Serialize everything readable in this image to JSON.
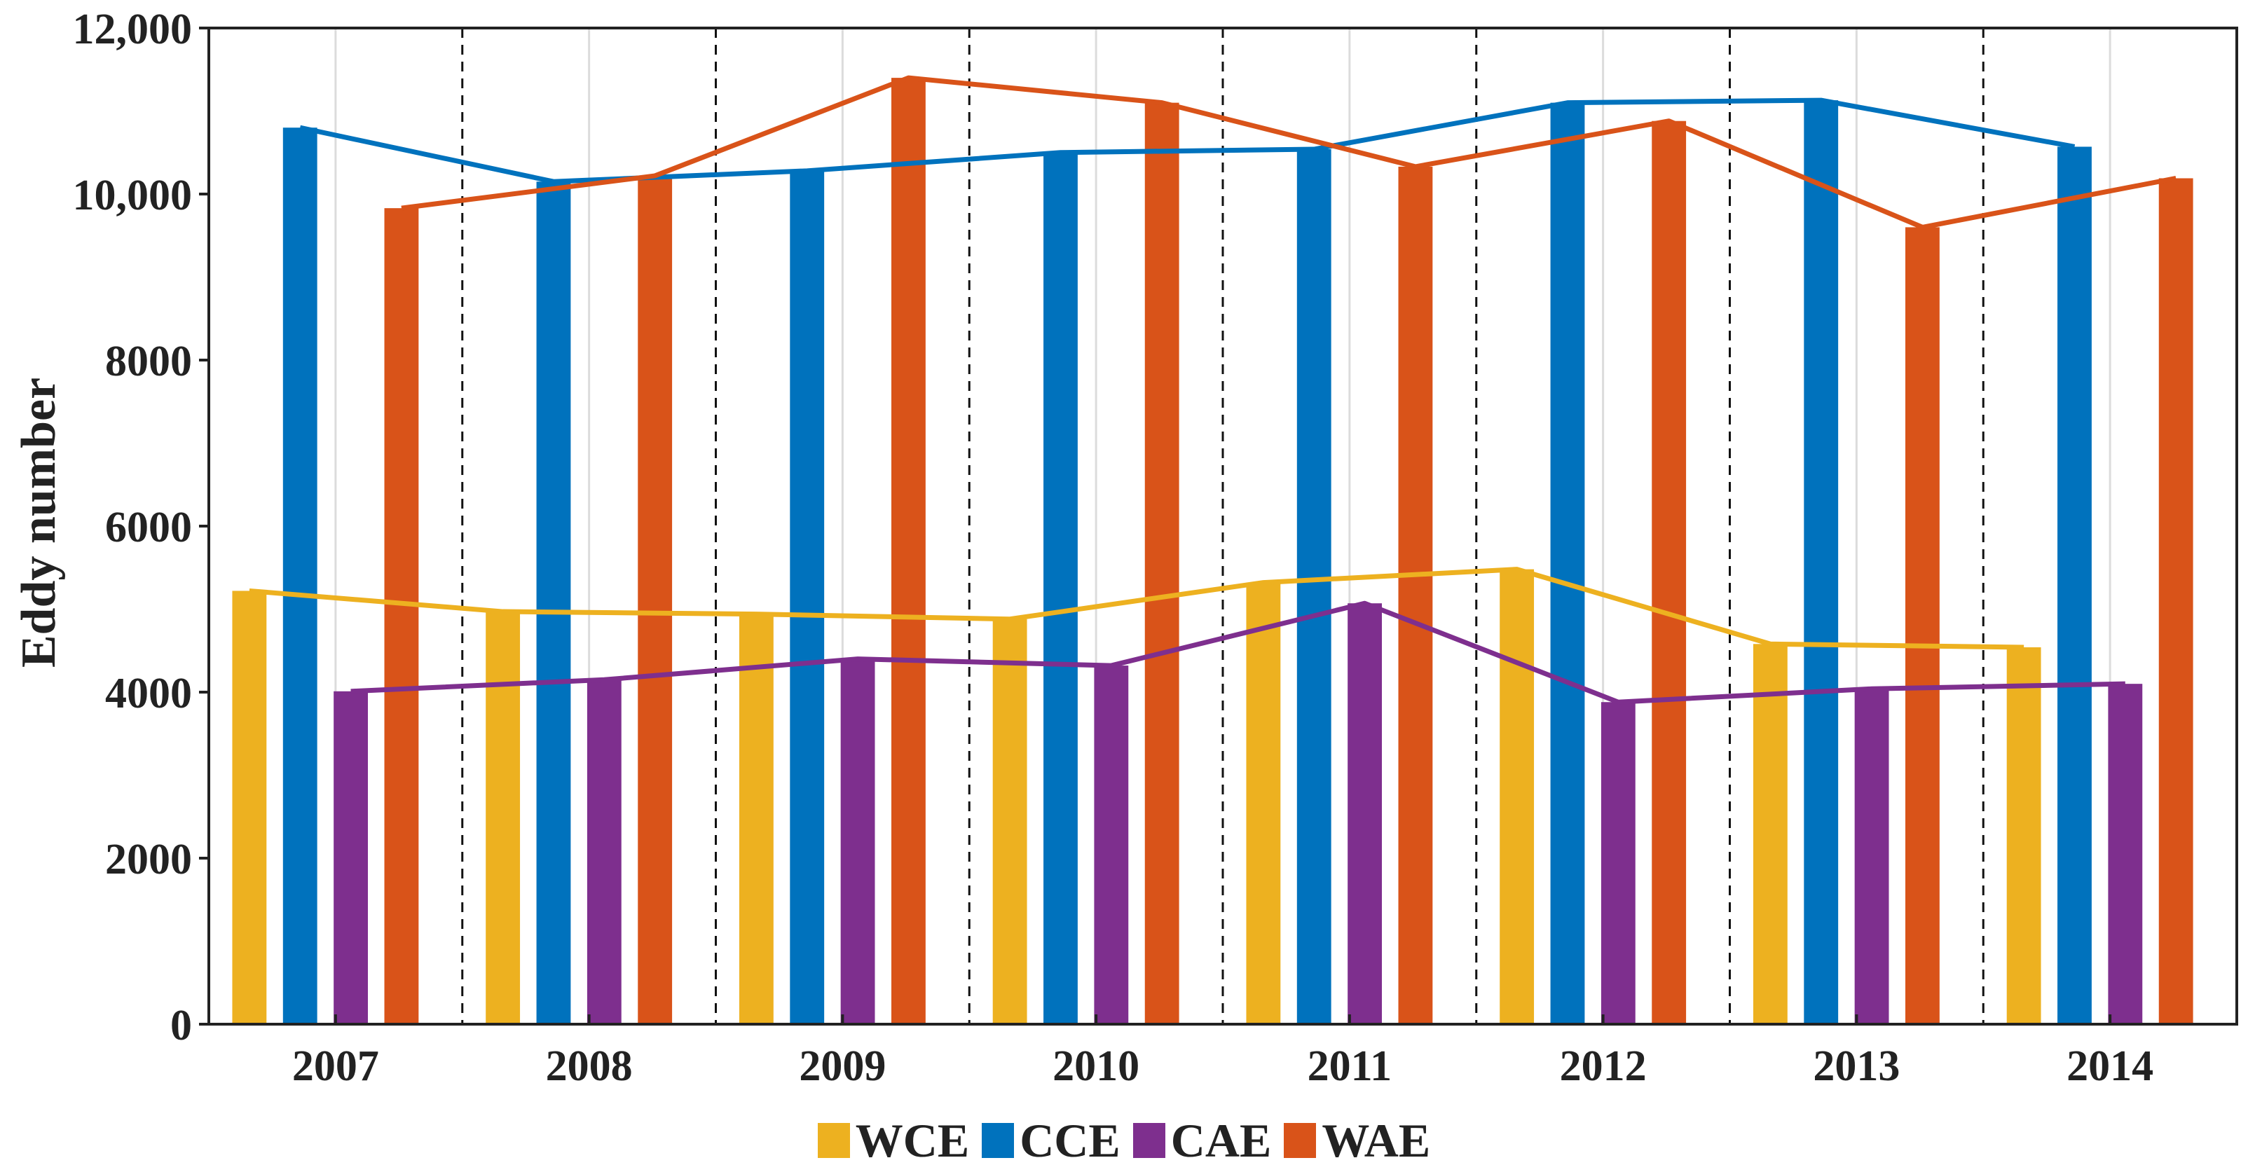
{
  "chart_data": {
    "type": "bar",
    "title": "",
    "xlabel": "",
    "ylabel": "Eddy number",
    "ylim": [
      0,
      12000
    ],
    "yticks": [
      0,
      2000,
      4000,
      6000,
      8000,
      10000,
      12000
    ],
    "ytick_labels": [
      "0",
      "2000",
      "4000",
      "6000",
      "8000",
      "10,000",
      "12,000"
    ],
    "categories": [
      "2007",
      "2008",
      "2009",
      "2010",
      "2011",
      "2012",
      "2013",
      "2014"
    ],
    "series": [
      {
        "name": "WCE",
        "color": "#EDB120",
        "values": [
          5220,
          4970,
          4940,
          4880,
          5320,
          5480,
          4580,
          4540
        ]
      },
      {
        "name": "CCE",
        "color": "#0072BD",
        "values": [
          10800,
          10150,
          10280,
          10500,
          10540,
          11100,
          11130,
          10570
        ]
      },
      {
        "name": "CAE",
        "color": "#7E2F8E",
        "values": [
          4010,
          4150,
          4400,
          4320,
          5070,
          3880,
          4040,
          4100
        ]
      },
      {
        "name": "WAE",
        "color": "#D95319",
        "values": [
          9830,
          10220,
          11400,
          11100,
          10330,
          10880,
          9600,
          10190
        ]
      }
    ],
    "trend_lines": true,
    "grid": "vertical-light",
    "separators": "dashed-between-years",
    "legend_position": "bottom-center"
  }
}
